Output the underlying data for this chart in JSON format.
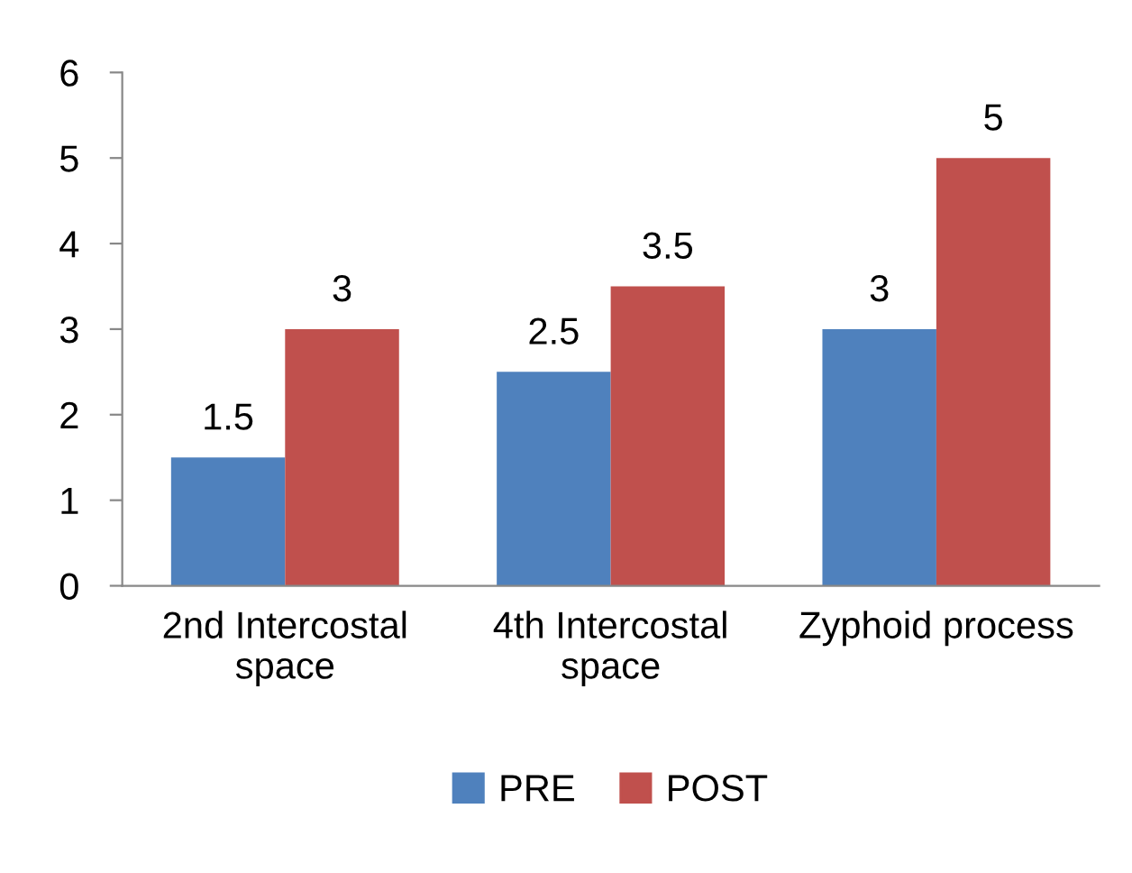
{
  "chart_data": {
    "type": "bar",
    "categories": [
      "2nd Intercostal\nspace",
      "4th Intercostal\nspace",
      "Zyphoid process"
    ],
    "series": [
      {
        "name": "PRE",
        "color": "#4f81bd",
        "values": [
          1.5,
          2.5,
          3
        ]
      },
      {
        "name": "POST",
        "color": "#c0504d",
        "values": [
          3,
          3.5,
          5
        ]
      }
    ],
    "ylim": [
      0,
      6
    ],
    "yticks": [
      0,
      1,
      2,
      3,
      4,
      5,
      6
    ],
    "grid": false,
    "legend": "bottom",
    "data_labels": true
  }
}
